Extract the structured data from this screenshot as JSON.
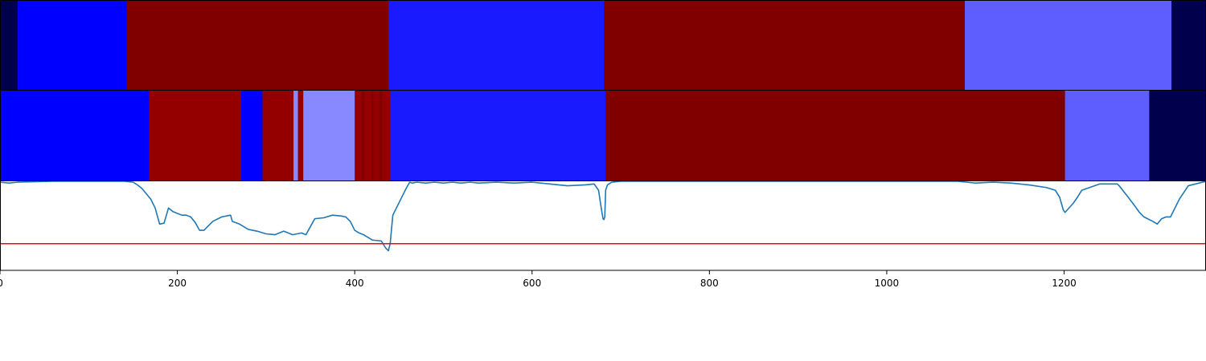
{
  "chart_data": [
    {
      "type": "heatmap",
      "panel": "top-segment-band",
      "xlim": [
        0,
        1360
      ],
      "segments": [
        {
          "start": 0,
          "end": 20,
          "color": "#00004c"
        },
        {
          "start": 20,
          "end": 143,
          "color": "#0000ff"
        },
        {
          "start": 143,
          "end": 438,
          "color": "#800000"
        },
        {
          "start": 438,
          "end": 681,
          "color": "#1a1aff"
        },
        {
          "start": 681,
          "end": 1088,
          "color": "#800000"
        },
        {
          "start": 1088,
          "end": 1321,
          "color": "#5e5eff"
        },
        {
          "start": 1321,
          "end": 1360,
          "color": "#00004c"
        }
      ]
    },
    {
      "type": "heatmap",
      "panel": "middle-segment-band",
      "xlim": [
        0,
        1360
      ],
      "segments": [
        {
          "start": 0,
          "end": 168,
          "color": "#0000ff"
        },
        {
          "start": 168,
          "end": 272,
          "color": "#940000"
        },
        {
          "start": 272,
          "end": 296,
          "color": "#0000ff"
        },
        {
          "start": 296,
          "end": 331,
          "color": "#940000"
        },
        {
          "start": 331,
          "end": 336,
          "color": "#8888ff"
        },
        {
          "start": 336,
          "end": 342,
          "color": "#940000"
        },
        {
          "start": 342,
          "end": 400,
          "color": "#8888ff"
        },
        {
          "start": 400,
          "end": 408,
          "color": "#940000"
        },
        {
          "start": 408,
          "end": 411,
          "color": "#800000"
        },
        {
          "start": 411,
          "end": 419,
          "color": "#940000"
        },
        {
          "start": 419,
          "end": 421,
          "color": "#800000"
        },
        {
          "start": 421,
          "end": 428,
          "color": "#940000"
        },
        {
          "start": 428,
          "end": 431,
          "color": "#800000"
        },
        {
          "start": 431,
          "end": 440,
          "color": "#940000"
        },
        {
          "start": 440,
          "end": 683,
          "color": "#1a1aff"
        },
        {
          "start": 683,
          "end": 1201,
          "color": "#800000"
        },
        {
          "start": 1201,
          "end": 1296,
          "color": "#5e5eff"
        },
        {
          "start": 1296,
          "end": 1360,
          "color": "#00004c"
        }
      ]
    },
    {
      "type": "line",
      "panel": "bottom-line-plot",
      "xlim": [
        0,
        1360
      ],
      "ylim": [
        0,
        1
      ],
      "xticks": [
        0,
        200,
        400,
        600,
        800,
        1000,
        1200
      ],
      "xtick_labels": [
        "0",
        "200",
        "400",
        "600",
        "800",
        "1000",
        "1200"
      ],
      "threshold": {
        "y": 0.3,
        "color": "#ff0000"
      },
      "series": [
        {
          "color": "#1f77b4",
          "x": [
            0,
            10,
            20,
            60,
            100,
            140,
            150,
            155,
            160,
            165,
            170,
            175,
            180,
            185,
            190,
            195,
            200,
            205,
            210,
            215,
            220,
            225,
            230,
            240,
            250,
            260,
            262,
            270,
            280,
            290,
            300,
            310,
            320,
            330,
            340,
            345,
            355,
            365,
            375,
            385,
            390,
            395,
            400,
            405,
            410,
            420,
            430,
            435,
            438,
            440,
            443,
            448,
            452,
            458,
            462,
            465,
            470,
            480,
            490,
            500,
            510,
            520,
            530,
            540,
            560,
            580,
            600,
            620,
            640,
            660,
            670,
            675,
            678,
            680,
            681,
            682,
            683,
            685,
            690,
            700,
            750,
            800,
            850,
            900,
            950,
            1000,
            1050,
            1080,
            1090,
            1100,
            1120,
            1140,
            1160,
            1180,
            1190,
            1195,
            1199,
            1201,
            1210,
            1215,
            1220,
            1240,
            1260,
            1262,
            1270,
            1280,
            1285,
            1290,
            1300,
            1305,
            1310,
            1315,
            1320,
            1330,
            1340,
            1360
          ],
          "y": [
            0.99,
            0.98,
            0.99,
            1.0,
            1.0,
            1.0,
            0.99,
            0.96,
            0.92,
            0.86,
            0.8,
            0.7,
            0.52,
            0.53,
            0.7,
            0.66,
            0.64,
            0.62,
            0.62,
            0.6,
            0.54,
            0.45,
            0.45,
            0.55,
            0.6,
            0.62,
            0.55,
            0.52,
            0.46,
            0.44,
            0.41,
            0.4,
            0.44,
            0.4,
            0.42,
            0.4,
            0.58,
            0.59,
            0.62,
            0.61,
            0.6,
            0.55,
            0.45,
            0.42,
            0.4,
            0.34,
            0.33,
            0.25,
            0.22,
            0.3,
            0.62,
            0.72,
            0.8,
            0.92,
            0.99,
            0.98,
            0.99,
            0.98,
            0.99,
            0.98,
            0.99,
            0.98,
            0.99,
            0.98,
            0.99,
            0.98,
            0.99,
            0.97,
            0.95,
            0.96,
            0.97,
            0.9,
            0.7,
            0.58,
            0.57,
            0.6,
            0.9,
            0.96,
            0.99,
            1.0,
            1.0,
            1.0,
            1.0,
            1.0,
            1.0,
            1.0,
            1.0,
            1.0,
            0.99,
            0.98,
            0.99,
            0.98,
            0.96,
            0.93,
            0.9,
            0.82,
            0.68,
            0.65,
            0.75,
            0.82,
            0.9,
            0.97,
            0.97,
            0.95,
            0.85,
            0.72,
            0.65,
            0.6,
            0.55,
            0.52,
            0.58,
            0.6,
            0.6,
            0.8,
            0.95,
            1.0
          ]
        }
      ]
    }
  ]
}
